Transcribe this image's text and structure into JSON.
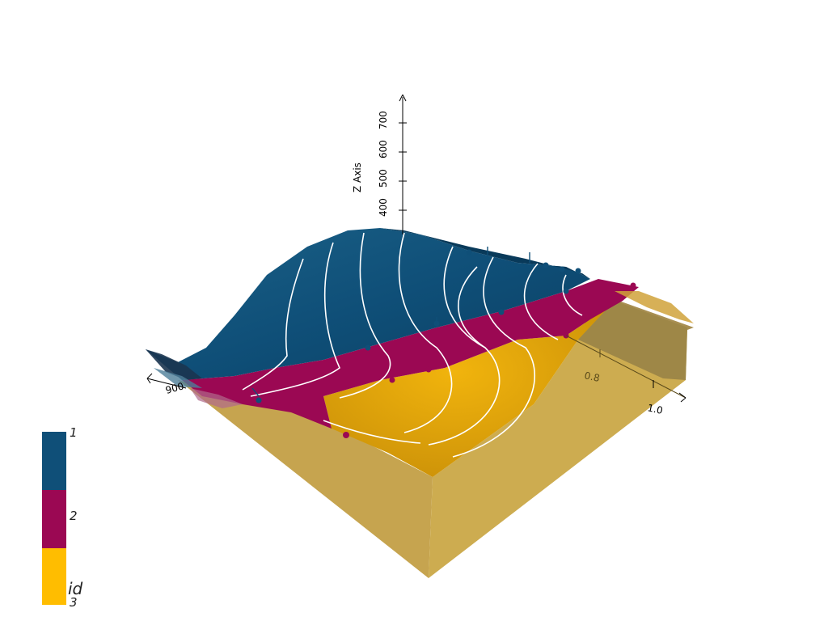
{
  "z_axis": {
    "title": "Z Axis",
    "ticks": [
      "400",
      "500",
      "600",
      "700"
    ]
  },
  "y_axis": {
    "ticks": [
      "0.8",
      "1.0"
    ]
  },
  "x_axis": {
    "ticks": [
      "900"
    ]
  },
  "legend": {
    "title": "id",
    "entries": [
      {
        "label": "1",
        "color": "#0f4f78"
      },
      {
        "label": "2",
        "color": "#9b0853"
      },
      {
        "label": "3",
        "color": "#ffbd00"
      }
    ]
  },
  "colors": {
    "unit_1": "#0f4f78",
    "unit_2": "#9b0853",
    "unit_3_top": "#e5a80e",
    "block_side_left": "#c4a24e",
    "block_side_right": "#ceac4f",
    "contour": "#ffffff"
  }
}
